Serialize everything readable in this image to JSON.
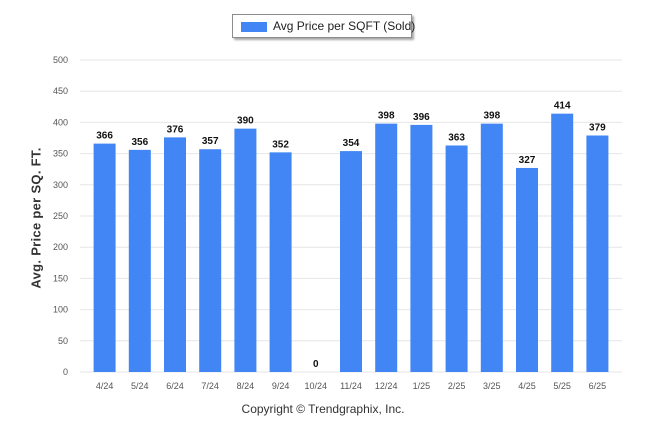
{
  "colors": {
    "bar": "#4285f4",
    "grid": "#e6e6e6",
    "axis_text": "#555555",
    "label_text": "#111111"
  },
  "chart_data": {
    "type": "bar",
    "categories": [
      "4/24",
      "5/24",
      "6/24",
      "7/24",
      "8/24",
      "9/24",
      "10/24",
      "11/24",
      "12/24",
      "1/25",
      "2/25",
      "3/25",
      "4/25",
      "5/25",
      "6/25"
    ],
    "series": [
      {
        "name": "Avg Price per SQFT (Sold)",
        "values": [
          366,
          356,
          376,
          357,
          390,
          352,
          0,
          354,
          398,
          396,
          363,
          398,
          327,
          414,
          379
        ]
      }
    ],
    "ylabel": "Avg. Price per SQ. FT.",
    "ylim": [
      0,
      500
    ],
    "yticks": [
      0,
      50,
      100,
      150,
      200,
      250,
      300,
      350,
      400,
      450,
      500
    ],
    "grid": true,
    "legend_position": "top-center",
    "data_labels": true
  },
  "footer": {
    "copyright": "Copyright © Trendgraphix, Inc."
  }
}
